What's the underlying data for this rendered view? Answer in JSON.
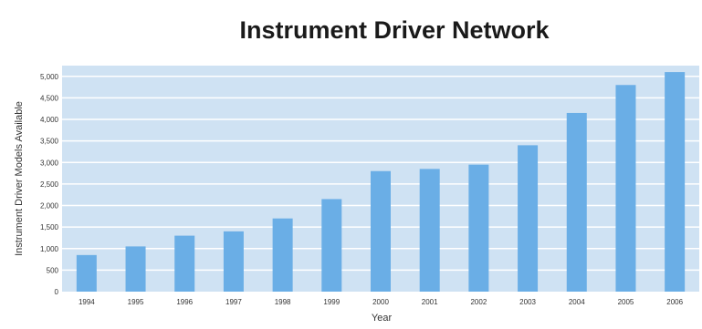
{
  "chart_data": {
    "type": "bar",
    "title": "Instrument Driver Network",
    "xlabel": "Year",
    "ylabel": "Instrument Driver Models Available",
    "categories": [
      "1994",
      "1995",
      "1996",
      "1997",
      "1998",
      "1999",
      "2000",
      "2001",
      "2002",
      "2003",
      "2004",
      "2005",
      "2006"
    ],
    "values": [
      850,
      1050,
      1300,
      1400,
      1700,
      2150,
      2800,
      2850,
      2950,
      3400,
      4150,
      4800,
      5100
    ],
    "ylim": [
      0,
      5250
    ],
    "yticks": [
      0,
      500,
      1000,
      1500,
      2000,
      2500,
      3000,
      3500,
      4000,
      4500,
      5000
    ],
    "ytick_labels": [
      "0",
      "500",
      "1,000",
      "1,500",
      "2,000",
      "2,500",
      "3,000",
      "3,500",
      "4,000",
      "4,500",
      "5,000"
    ],
    "grid": true,
    "legend": "none",
    "colors": {
      "plot_background": "#cfe2f3",
      "bar": "#6aaee6",
      "grid": "#ffffff",
      "title": "#1a1a1a"
    }
  }
}
